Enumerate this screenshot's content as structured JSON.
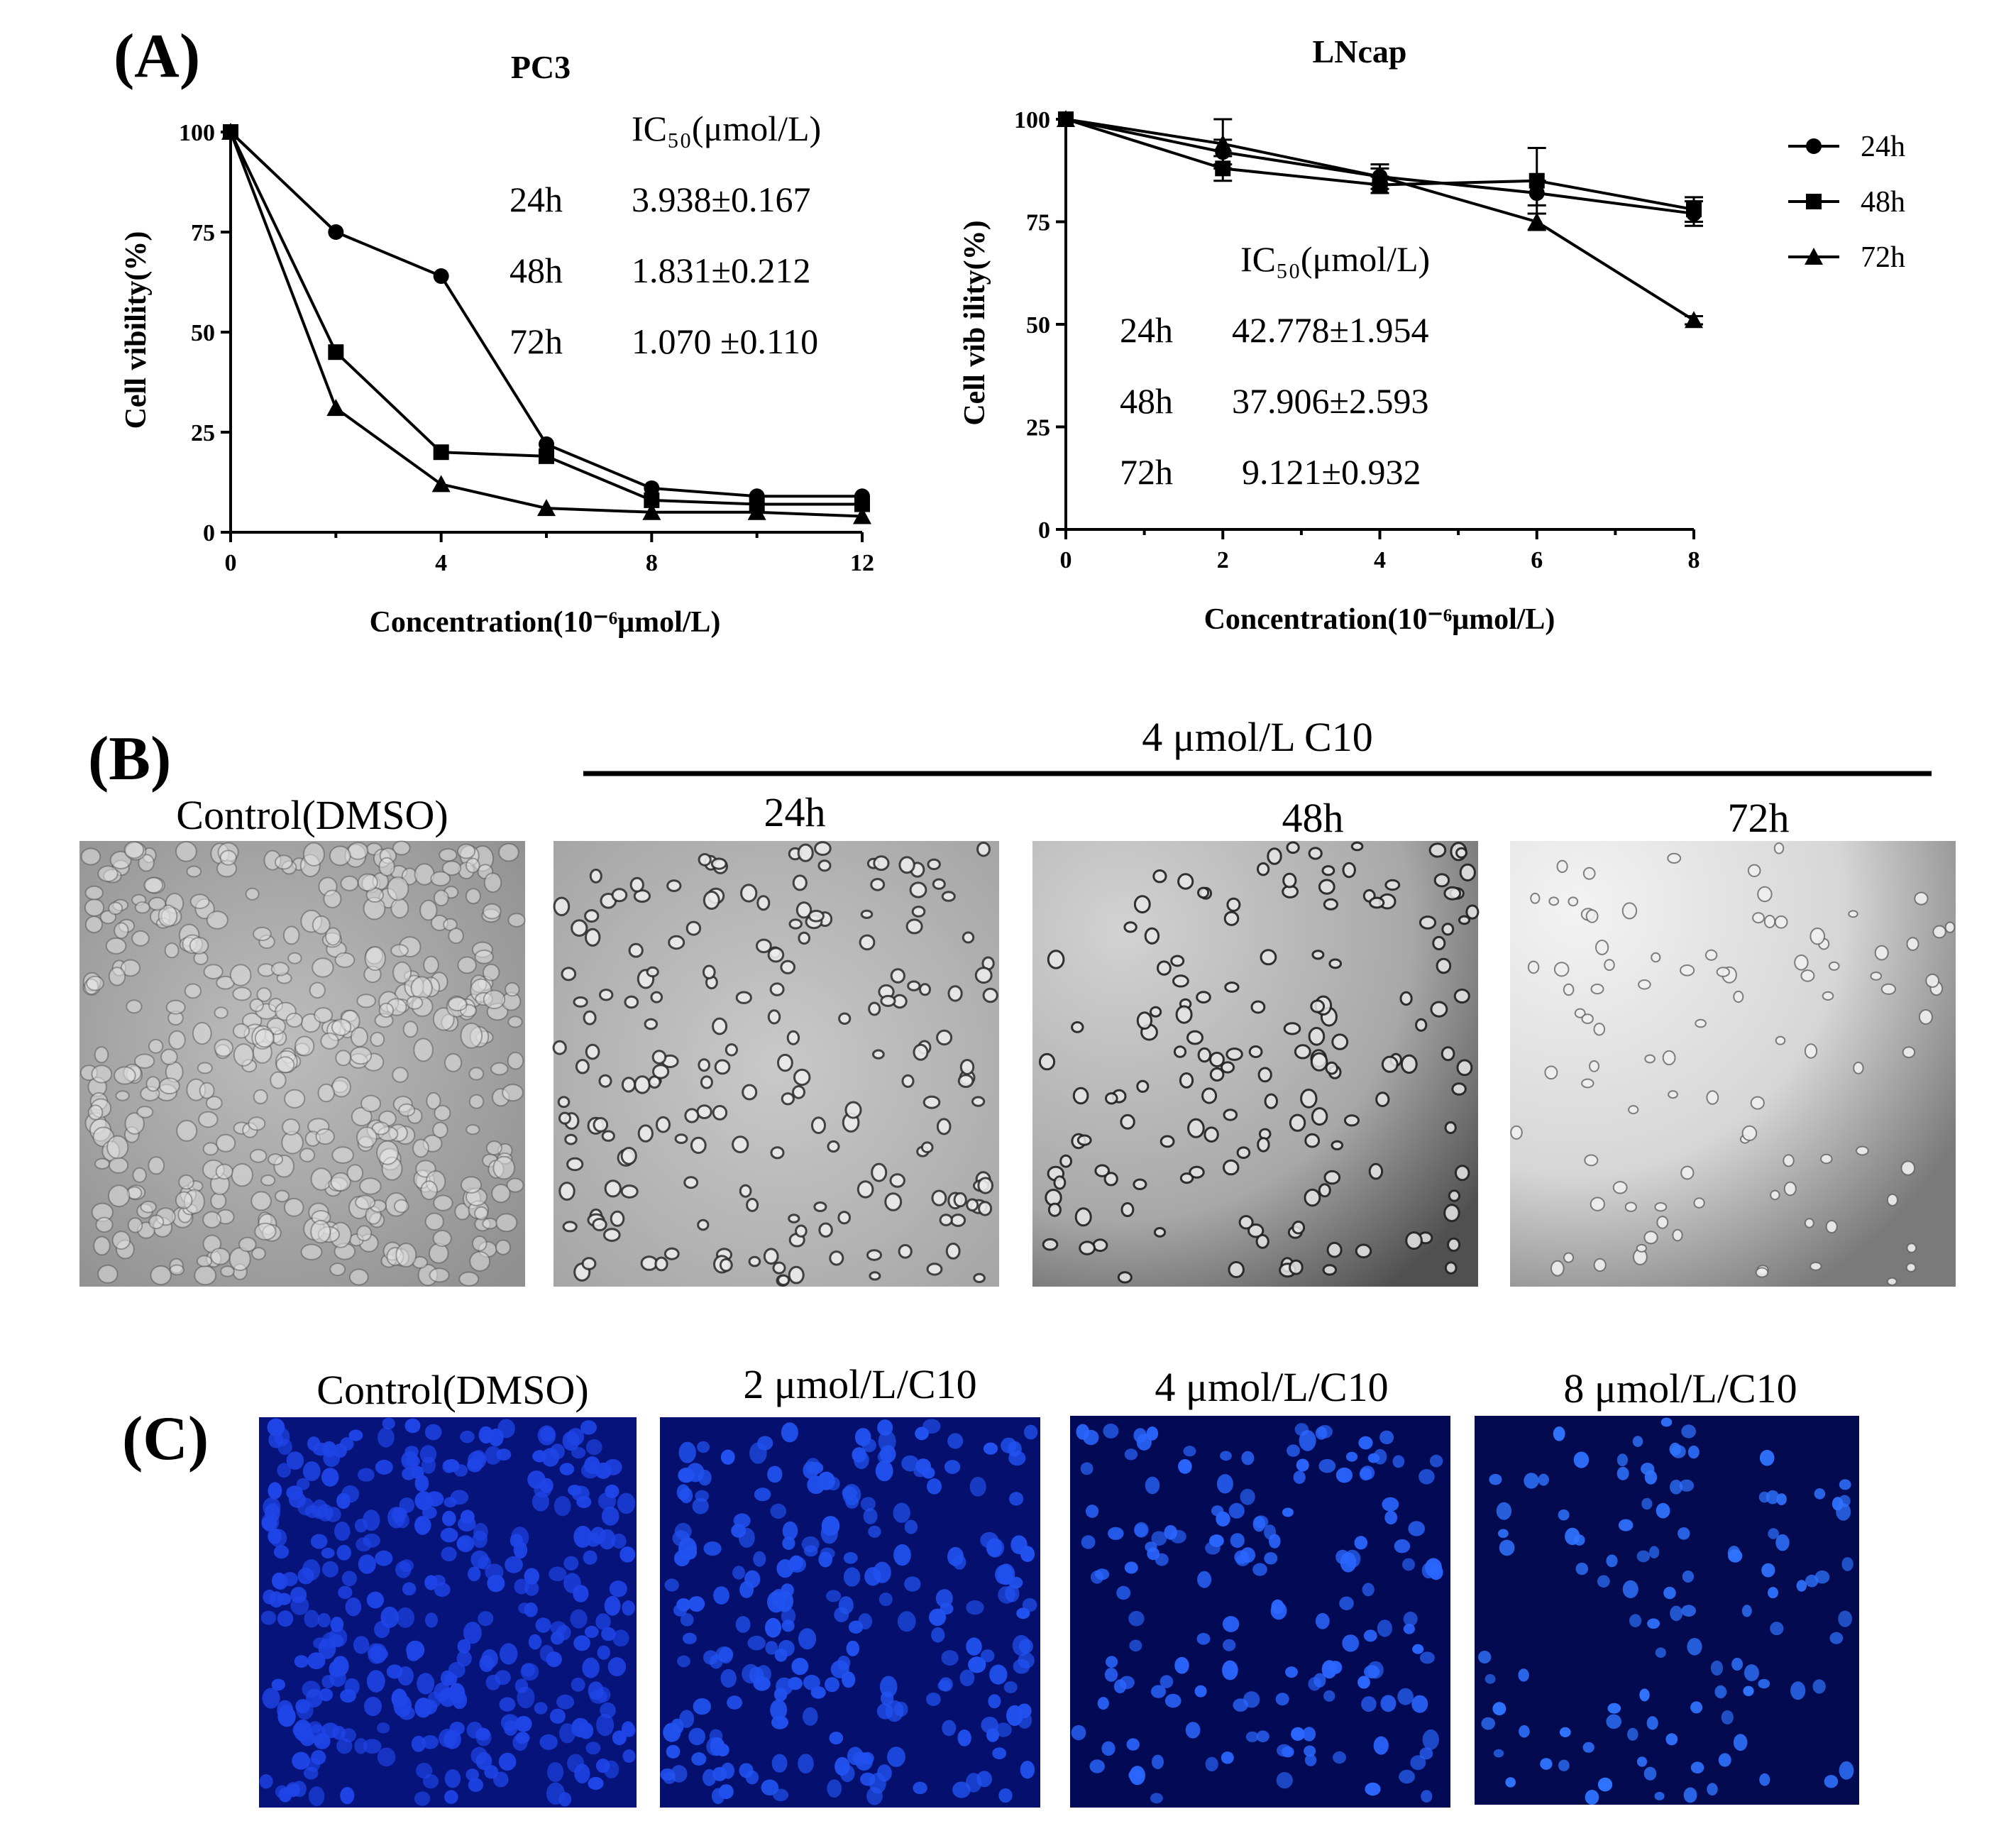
{
  "panels": {
    "a_label": "(A)",
    "b_label": "(B)",
    "c_label": "(C)"
  },
  "chart_data": [
    {
      "type": "line",
      "title": "PC3",
      "xlabel": "Concentration(10⁻⁶μmol/L)",
      "ylabel": "Cell vibility(%)",
      "x": [
        0,
        2,
        4,
        6,
        8,
        10,
        12
      ],
      "xticks": [
        "0",
        "4",
        "8",
        "12"
      ],
      "yticks": [
        "0",
        "25",
        "50",
        "75",
        "100"
      ],
      "xlim": [
        0,
        12
      ],
      "ylim": [
        0,
        100
      ],
      "series": [
        {
          "name": "24h",
          "marker": "circle",
          "values": [
            100,
            75,
            64,
            22,
            11,
            9,
            9
          ]
        },
        {
          "name": "48h",
          "marker": "square",
          "values": [
            100,
            45,
            20,
            19,
            8,
            7,
            7
          ]
        },
        {
          "name": "72h",
          "marker": "triangle",
          "values": [
            100,
            31,
            12,
            6,
            5,
            5,
            4
          ]
        }
      ],
      "ic50": {
        "header": "IC₅₀(μmol/L)",
        "rows": [
          {
            "time": "24h",
            "value": "3.938±0.167"
          },
          {
            "time": "48h",
            "value": "1.831±0.212"
          },
          {
            "time": "72h",
            "value": "1.070 ±0.110"
          }
        ]
      }
    },
    {
      "type": "line",
      "title": "LNcap",
      "xlabel": "Concentration(10⁻⁶μmol/L)",
      "ylabel": "Cell vib ility(%)",
      "x": [
        0,
        2,
        4,
        6,
        8
      ],
      "xticks": [
        "0",
        "2",
        "4",
        "6",
        "8"
      ],
      "yticks": [
        "0",
        "25",
        "50",
        "75",
        "100"
      ],
      "xlim": [
        0,
        8
      ],
      "ylim": [
        0,
        100
      ],
      "series": [
        {
          "name": "24h",
          "marker": "circle",
          "values": [
            100,
            92,
            86,
            82,
            77
          ],
          "errors": [
            0,
            3,
            2,
            3,
            3
          ]
        },
        {
          "name": "48h",
          "marker": "square",
          "values": [
            100,
            88,
            84,
            85,
            78
          ],
          "errors": [
            0,
            3,
            2,
            8,
            3
          ]
        },
        {
          "name": "72h",
          "marker": "triangle",
          "values": [
            100,
            94,
            86,
            75,
            51
          ],
          "errors": [
            0,
            6,
            3,
            2,
            1
          ]
        }
      ],
      "ic50": {
        "header": "IC₅₀(μmol/L)",
        "rows": [
          {
            "time": "24h",
            "value": "42.778±1.954"
          },
          {
            "time": "48h",
            "value": "37.906±2.593"
          },
          {
            "time": "72h",
            "value": "9.121±0.932"
          }
        ]
      }
    }
  ],
  "legend": {
    "placement": "right",
    "items": [
      {
        "label": "24h",
        "marker": "circle"
      },
      {
        "label": "48h",
        "marker": "square"
      },
      {
        "label": "72h",
        "marker": "triangle"
      }
    ]
  },
  "panel_b": {
    "treatment_header": "4 μmol/L C10",
    "images": [
      {
        "label": "Control(DMSO)"
      },
      {
        "label": "24h"
      },
      {
        "label": "48h"
      },
      {
        "label": "72h"
      }
    ]
  },
  "panel_c": {
    "images": [
      {
        "label": "Control(DMSO)"
      },
      {
        "label": "2 μmol/L/C10"
      },
      {
        "label": "4 μmol/L/C10"
      },
      {
        "label": "8 μmol/L/C10"
      }
    ]
  }
}
